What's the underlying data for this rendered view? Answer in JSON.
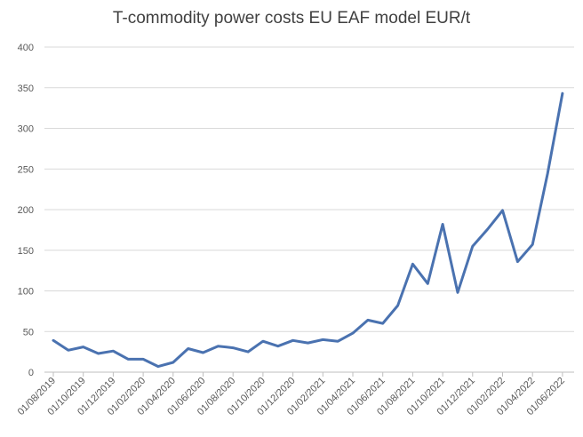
{
  "chart_data": {
    "type": "line",
    "title": "T-commodity power costs EU EAF model EUR/t",
    "xlabel": "",
    "ylabel": "",
    "ylim": [
      0,
      400
    ],
    "yticks": [
      0,
      50,
      100,
      150,
      200,
      250,
      300,
      350,
      400
    ],
    "grid": true,
    "legend": "none",
    "line_color": "#4a72b0",
    "x_tick_labels": [
      "01/08/2019",
      "01/10/2019",
      "01/12/2019",
      "01/02/2020",
      "01/04/2020",
      "01/06/2020",
      "01/08/2020",
      "01/10/2020",
      "01/12/2020",
      "01/02/2021",
      "01/04/2021",
      "01/06/2021",
      "01/08/2021",
      "01/10/2021",
      "01/12/2021",
      "01/02/2022",
      "01/04/2022",
      "01/06/2022"
    ],
    "series": [
      {
        "name": "T-commodity power costs",
        "values": [
          39,
          27,
          31,
          23,
          26,
          16,
          16,
          7,
          12,
          29,
          24,
          32,
          30,
          25,
          38,
          32,
          39,
          36,
          40,
          38,
          48,
          64,
          60,
          82,
          133,
          109,
          182,
          98,
          155,
          176,
          199,
          136,
          157,
          244,
          343
        ]
      }
    ]
  }
}
